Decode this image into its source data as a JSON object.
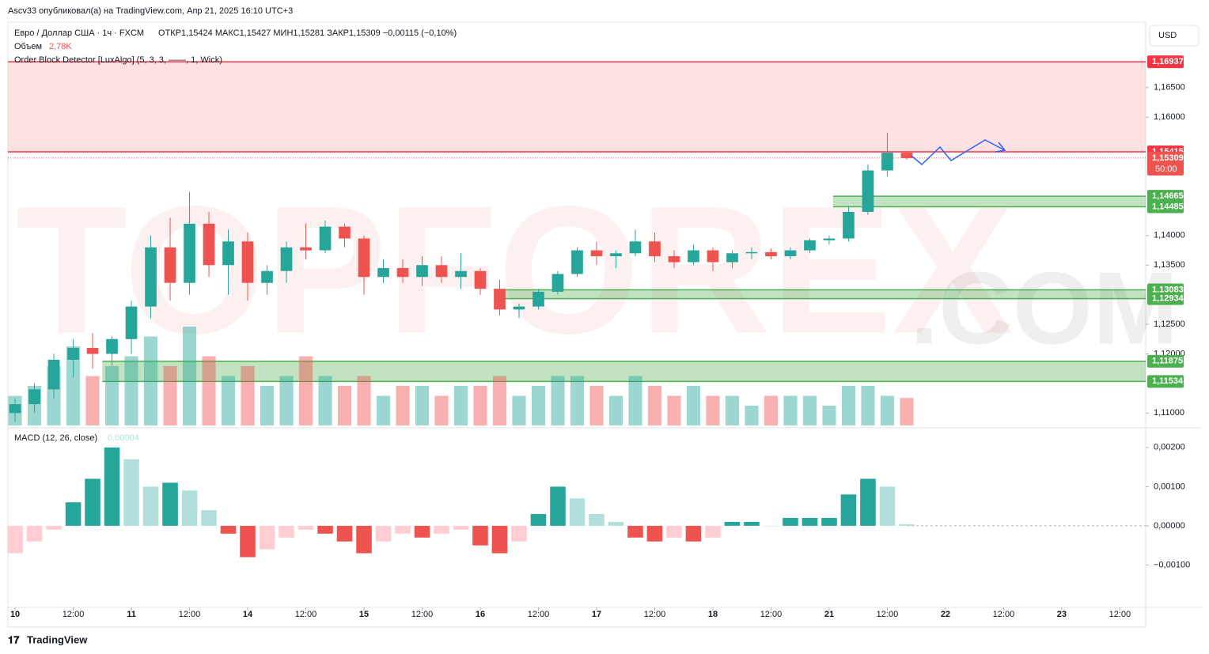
{
  "header": {
    "publisher": "Ascv33 опубликовал(а) на TradingView.com, Апр 21, 2025 16:10 UTC+3",
    "currency": "USD",
    "footer": "TradingView"
  },
  "legend": {
    "symbol": "Евро / Доллар США · 1ч · FXCM",
    "ohlc": "ОТКР1,15424  МАКС1,15427  МИН1,15281  ЗАКР1,15309  −0,00115 (−0,10%)",
    "volume_name": "Объем",
    "volume_value": "2,78K",
    "indicator": "Order Block Detector [LuxAlgo] (5, 3, 3, ——, 1, Wick)"
  },
  "watermark": [
    "TOPFOREX",
    ".COM"
  ],
  "chart_data": {
    "type": "candlestick",
    "xlim": [
      -0.37,
      58.33
    ],
    "xticks": [
      {
        "value": 0,
        "label": "10"
      },
      {
        "value": 3,
        "label": "12:00"
      },
      {
        "value": 6,
        "label": "11"
      },
      {
        "value": 9,
        "label": "12:00"
      },
      {
        "value": 12,
        "label": "14"
      },
      {
        "value": 15,
        "label": "12:00"
      },
      {
        "value": 18,
        "label": "15"
      },
      {
        "value": 21,
        "label": "12:00"
      },
      {
        "value": 24,
        "label": "16"
      },
      {
        "value": 27,
        "label": "12:00"
      },
      {
        "value": 30,
        "label": "17"
      },
      {
        "value": 33,
        "label": "12:00"
      },
      {
        "value": 36,
        "label": "18"
      },
      {
        "value": 39,
        "label": "12:00"
      },
      {
        "value": 42,
        "label": "21"
      },
      {
        "value": 45,
        "label": "12:00"
      },
      {
        "value": 48,
        "label": "22"
      },
      {
        "value": 51,
        "label": "12:00"
      },
      {
        "value": 54,
        "label": "23"
      },
      {
        "value": 57,
        "label": "12:00"
      }
    ],
    "ylim": [
      1.1079,
      1.1758
    ],
    "yticks": [
      {
        "value": 1.165,
        "label": "1,16500"
      },
      {
        "value": 1.16,
        "label": "1,16000"
      },
      {
        "value": 1.14,
        "label": "1,14000"
      },
      {
        "value": 1.135,
        "label": "1,13500"
      },
      {
        "value": 1.125,
        "label": "1,12500"
      },
      {
        "value": 1.12,
        "label": "1,12000"
      },
      {
        "value": 1.11,
        "label": "1,11000"
      }
    ],
    "up_color": "#26a69a",
    "down_color": "#ef5350",
    "open": [
      1.11,
      1.1115,
      1.114,
      1.119,
      1.121,
      1.12,
      1.1225,
      1.128,
      1.138,
      1.132,
      1.142,
      1.135,
      1.139,
      1.132,
      1.134,
      1.138,
      1.1375,
      1.1415,
      1.1395,
      1.133,
      1.1345,
      1.133,
      1.135,
      1.133,
      1.134,
      1.131,
      1.1275,
      1.128,
      1.1305,
      1.1335,
      1.1375,
      1.1365,
      1.137,
      1.139,
      1.1365,
      1.1355,
      1.1375,
      1.1355,
      1.137,
      1.1372,
      1.1365,
      1.1375,
      1.1392,
      1.1395,
      1.144,
      1.151,
      1.154
    ],
    "high": [
      1.1125,
      1.115,
      1.12,
      1.1225,
      1.1235,
      1.123,
      1.129,
      1.14,
      1.143,
      1.1474,
      1.144,
      1.141,
      1.1405,
      1.135,
      1.139,
      1.142,
      1.1425,
      1.142,
      1.14,
      1.136,
      1.136,
      1.1365,
      1.1365,
      1.137,
      1.1345,
      1.1325,
      1.1285,
      1.131,
      1.134,
      1.138,
      1.139,
      1.1375,
      1.141,
      1.1405,
      1.1375,
      1.1385,
      1.138,
      1.1375,
      1.138,
      1.1378,
      1.138,
      1.1395,
      1.14,
      1.145,
      1.152,
      1.1574,
      1.1543
    ],
    "low": [
      1.1085,
      1.11,
      1.1125,
      1.116,
      1.1175,
      1.118,
      1.12,
      1.126,
      1.129,
      1.13,
      1.133,
      1.13,
      1.129,
      1.13,
      1.132,
      1.136,
      1.137,
      1.138,
      1.13,
      1.132,
      1.132,
      1.1315,
      1.132,
      1.131,
      1.13,
      1.1265,
      1.126,
      1.1275,
      1.13,
      1.133,
      1.135,
      1.1345,
      1.1365,
      1.1355,
      1.1345,
      1.135,
      1.134,
      1.1345,
      1.136,
      1.136,
      1.136,
      1.137,
      1.1385,
      1.139,
      1.1435,
      1.15,
      1.1528
    ],
    "close": [
      1.1115,
      1.114,
      1.119,
      1.121,
      1.12,
      1.1225,
      1.128,
      1.138,
      1.132,
      1.142,
      1.135,
      1.139,
      1.132,
      1.134,
      1.138,
      1.1375,
      1.1415,
      1.1395,
      1.133,
      1.1345,
      1.133,
      1.135,
      1.133,
      1.134,
      1.131,
      1.1275,
      1.128,
      1.1305,
      1.1335,
      1.1375,
      1.1365,
      1.137,
      1.139,
      1.1365,
      1.1355,
      1.1375,
      1.1355,
      1.137,
      1.1372,
      1.1365,
      1.1375,
      1.1392,
      1.1395,
      1.144,
      1.151,
      1.154,
      1.15309
    ],
    "last_price": {
      "value": 1.15309,
      "label": "1,15309",
      "countdown": "50:00"
    },
    "zones": [
      {
        "top": 1.16937,
        "bottom": 1.15415,
        "start": -0.37,
        "kind": "bearish",
        "top_label": "1,16937",
        "bottom_label": "1,15415"
      },
      {
        "top": 1.14665,
        "bottom": 1.14485,
        "start": 42.2,
        "kind": "bullish",
        "top_label": "1,14665",
        "bottom_label": "1,14485"
      },
      {
        "top": 1.13083,
        "bottom": 1.12934,
        "start": 24.7,
        "kind": "bullish",
        "top_label": "1,13083",
        "bottom_label": "1,12934"
      },
      {
        "top": 1.11875,
        "bottom": 1.11534,
        "start": 4.5,
        "kind": "bullish",
        "top_label": "1,11875",
        "bottom_label": "1,11534"
      }
    ],
    "volume": {
      "ylim": [
        0,
        12
      ],
      "values": [
        3,
        4,
        6,
        8,
        5,
        6,
        7,
        9,
        6,
        10,
        7,
        5,
        6,
        4,
        5,
        7,
        5,
        4,
        5,
        3,
        4,
        4,
        3,
        4,
        4,
        5,
        3,
        4,
        5,
        5,
        4,
        3,
        5,
        4,
        3,
        4,
        3,
        3,
        2,
        3,
        3,
        3,
        2,
        4,
        4,
        3,
        2.78
      ]
    },
    "macd": {
      "title": "MACD (12, 26, close)",
      "value_label": "0,00004",
      "ylim": [
        -0.00202,
        0.00242
      ],
      "yticks": [
        {
          "value": 0.002,
          "label": "0,00200"
        },
        {
          "value": 0.001,
          "label": "0,00100"
        },
        {
          "value": 0,
          "label": "0,00000"
        },
        {
          "value": -0.001,
          "label": "−0,00100"
        }
      ],
      "values": [
        -0.0007,
        -0.0004,
        -0.0001,
        0.0006,
        0.0012,
        0.002,
        0.0017,
        0.001,
        0.0011,
        0.0009,
        0.0004,
        -0.0002,
        -0.0008,
        -0.0006,
        -0.0003,
        -0.0001,
        -0.0002,
        -0.0004,
        -0.0007,
        -0.0004,
        -0.0002,
        -0.0003,
        -0.0002,
        -0.0001,
        -0.0005,
        -0.0007,
        -0.0004,
        0.0003,
        0.001,
        0.0007,
        0.0003,
        0.0001,
        -0.0003,
        -0.0004,
        -0.0003,
        -0.0004,
        -0.0003,
        0.0001,
        0.0001,
        0,
        0.0002,
        0.0002,
        0.0002,
        0.0008,
        0.0012,
        0.001,
        4e-05
      ]
    }
  }
}
